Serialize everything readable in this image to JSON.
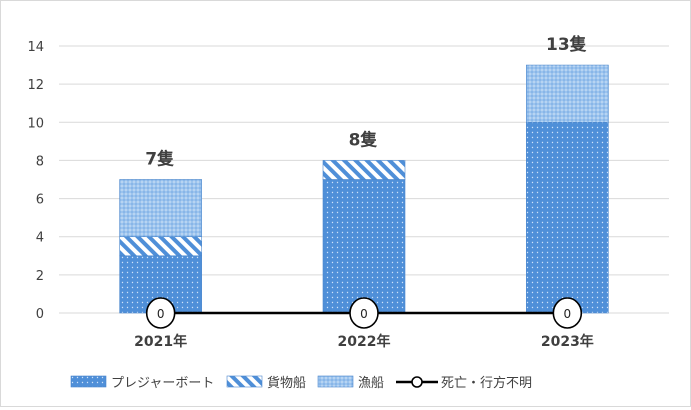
{
  "colors": {
    "boat": "#4f8fd8",
    "cargo": "#4f8fd8",
    "fishing": "#8fbbe9",
    "line": "#000000",
    "grid": "#d9d9d9"
  },
  "chart_data": {
    "type": "bar",
    "stacked": true,
    "categories": [
      "2021年",
      "2022年",
      "2023年"
    ],
    "series": [
      {
        "name": "プレジャーボート",
        "values": [
          3,
          7,
          10
        ],
        "pattern": "dots"
      },
      {
        "name": "貨物船",
        "values": [
          1,
          1,
          0
        ],
        "pattern": "diagonal"
      },
      {
        "name": "漁船",
        "values": [
          3,
          0,
          3
        ],
        "pattern": "fine-dots"
      }
    ],
    "line_series": {
      "name": "死亡・行方不明",
      "values": [
        0,
        0,
        0
      ],
      "labels": [
        "0",
        "0",
        "0"
      ]
    },
    "totals": [
      "7隻",
      "8隻",
      "13隻"
    ],
    "ylim": [
      0,
      14
    ],
    "yticks": [
      "0",
      "2",
      "4",
      "6",
      "8",
      "10",
      "12",
      "14"
    ],
    "grid": true,
    "legend_position": "bottom"
  }
}
